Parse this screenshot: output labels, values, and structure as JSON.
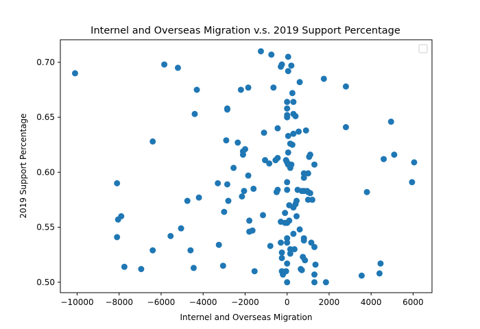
{
  "chart_data": {
    "type": "scatter",
    "title": "Internel and Overseas Migration v.s. 2019 Support Percentage",
    "xlabel": "Internel and Overseas Migration",
    "ylabel": "2019 Support Percentage",
    "xlim": [
      -10800,
      6900
    ],
    "ylim": [
      0.4905,
      0.7205
    ],
    "xticks": [
      -10000,
      -8000,
      -6000,
      -4000,
      -2000,
      0,
      2000,
      4000,
      6000
    ],
    "xtick_labels": [
      "−10000",
      "−8000",
      "−6000",
      "−4000",
      "−2000",
      "0",
      "2000",
      "4000",
      "6000"
    ],
    "yticks": [
      0.5,
      0.55,
      0.6,
      0.65,
      0.7
    ],
    "ytick_labels": [
      "0.50",
      "0.55",
      "0.60",
      "0.65",
      "0.70"
    ],
    "grid": false,
    "legend": "top-right (empty)",
    "marker_color": "#1f77b4",
    "series": [
      {
        "points": [
          [
            -10100,
            0.69
          ],
          [
            -8100,
            0.59
          ],
          [
            -8100,
            0.541
          ],
          [
            -8050,
            0.557
          ],
          [
            -7900,
            0.56
          ],
          [
            -7750,
            0.514
          ],
          [
            -6950,
            0.512
          ],
          [
            -6400,
            0.628
          ],
          [
            -6400,
            0.529
          ],
          [
            -5850,
            0.698
          ],
          [
            -5550,
            0.542
          ],
          [
            -5200,
            0.695
          ],
          [
            -5050,
            0.549
          ],
          [
            -4600,
            0.529
          ],
          [
            -4450,
            0.513
          ],
          [
            -4400,
            0.653
          ],
          [
            -4300,
            0.675
          ],
          [
            -4200,
            0.577
          ],
          [
            -4750,
            0.574
          ],
          [
            -3300,
            0.59
          ],
          [
            -3250,
            0.534
          ],
          [
            -3050,
            0.515
          ],
          [
            -3000,
            0.564
          ],
          [
            -2900,
            0.629
          ],
          [
            -2850,
            0.658
          ],
          [
            -2850,
            0.657
          ],
          [
            -2850,
            0.589
          ],
          [
            -2800,
            0.574
          ],
          [
            -2550,
            0.604
          ],
          [
            -2350,
            0.627
          ],
          [
            -2200,
            0.675
          ],
          [
            -2150,
            0.578
          ],
          [
            -2100,
            0.616
          ],
          [
            -2100,
            0.619
          ],
          [
            -2000,
            0.621
          ],
          [
            -2050,
            0.583
          ],
          [
            -1850,
            0.677
          ],
          [
            -1850,
            0.597
          ],
          [
            -1800,
            0.556
          ],
          [
            -1800,
            0.546
          ],
          [
            -1650,
            0.547
          ],
          [
            -1600,
            0.585
          ],
          [
            -1550,
            0.51
          ],
          [
            -1250,
            0.71
          ],
          [
            -1150,
            0.561
          ],
          [
            -1100,
            0.636
          ],
          [
            -1050,
            0.611
          ],
          [
            -850,
            0.608
          ],
          [
            -800,
            0.533
          ],
          [
            -750,
            0.707
          ],
          [
            -650,
            0.677
          ],
          [
            -550,
            0.611
          ],
          [
            -450,
            0.64
          ],
          [
            -450,
            0.613
          ],
          [
            -450,
            0.584
          ],
          [
            -500,
            0.582
          ],
          [
            -300,
            0.696
          ],
          [
            -250,
            0.698
          ],
          [
            -300,
            0.536
          ],
          [
            -300,
            0.555
          ],
          [
            -250,
            0.527
          ],
          [
            -250,
            0.522
          ],
          [
            -250,
            0.51
          ],
          [
            -200,
            0.507
          ],
          [
            -100,
            0.563
          ],
          [
            -100,
            0.554
          ],
          [
            -50,
            0.611
          ],
          [
            -50,
            0.51
          ],
          [
            0,
            0.664
          ],
          [
            0,
            0.658
          ],
          [
            0,
            0.652
          ],
          [
            0,
            0.65
          ],
          [
            0,
            0.609
          ],
          [
            0,
            0.591
          ],
          [
            0,
            0.584
          ],
          [
            0,
            0.554
          ],
          [
            0,
            0.54
          ],
          [
            0,
            0.536
          ],
          [
            0,
            0.517
          ],
          [
            0,
            0.5
          ],
          [
            50,
            0.705
          ],
          [
            50,
            0.692
          ],
          [
            50,
            0.633
          ],
          [
            50,
            0.618
          ],
          [
            50,
            0.607
          ],
          [
            100,
            0.57
          ],
          [
            100,
            0.556
          ],
          [
            150,
            0.626
          ],
          [
            150,
            0.604
          ],
          [
            150,
            0.53
          ],
          [
            150,
            0.526
          ],
          [
            200,
            0.697
          ],
          [
            200,
            0.607
          ],
          [
            250,
            0.672
          ],
          [
            250,
            0.625
          ],
          [
            300,
            0.664
          ],
          [
            300,
            0.653
          ],
          [
            300,
            0.635
          ],
          [
            300,
            0.568
          ],
          [
            300,
            0.544
          ],
          [
            350,
            0.53
          ],
          [
            400,
            0.651
          ],
          [
            400,
            0.571
          ],
          [
            450,
            0.574
          ],
          [
            450,
            0.56
          ],
          [
            500,
            0.584
          ],
          [
            550,
            0.637
          ],
          [
            600,
            0.682
          ],
          [
            600,
            0.548
          ],
          [
            650,
            0.512
          ],
          [
            700,
            0.583
          ],
          [
            700,
            0.511
          ],
          [
            750,
            0.523
          ],
          [
            800,
            0.599
          ],
          [
            800,
            0.595
          ],
          [
            800,
            0.583
          ],
          [
            800,
            0.54
          ],
          [
            800,
            0.538
          ],
          [
            850,
            0.52
          ],
          [
            900,
            0.638
          ],
          [
            950,
            0.583
          ],
          [
            1000,
            0.599
          ],
          [
            1000,
            0.582
          ],
          [
            1000,
            0.575
          ],
          [
            1050,
            0.614
          ],
          [
            1100,
            0.616
          ],
          [
            1100,
            0.581
          ],
          [
            1150,
            0.536
          ],
          [
            1200,
            0.575
          ],
          [
            1300,
            0.607
          ],
          [
            1300,
            0.532
          ],
          [
            1300,
            0.507
          ],
          [
            1300,
            0.5
          ],
          [
            1350,
            0.516
          ],
          [
            1750,
            0.685
          ],
          [
            1850,
            0.5
          ],
          [
            2800,
            0.678
          ],
          [
            2800,
            0.641
          ],
          [
            3550,
            0.506
          ],
          [
            3800,
            0.582
          ],
          [
            4400,
            0.508
          ],
          [
            4450,
            0.517
          ],
          [
            4600,
            0.612
          ],
          [
            4950,
            0.646
          ],
          [
            5100,
            0.616
          ],
          [
            5950,
            0.591
          ],
          [
            6050,
            0.609
          ]
        ]
      }
    ]
  }
}
